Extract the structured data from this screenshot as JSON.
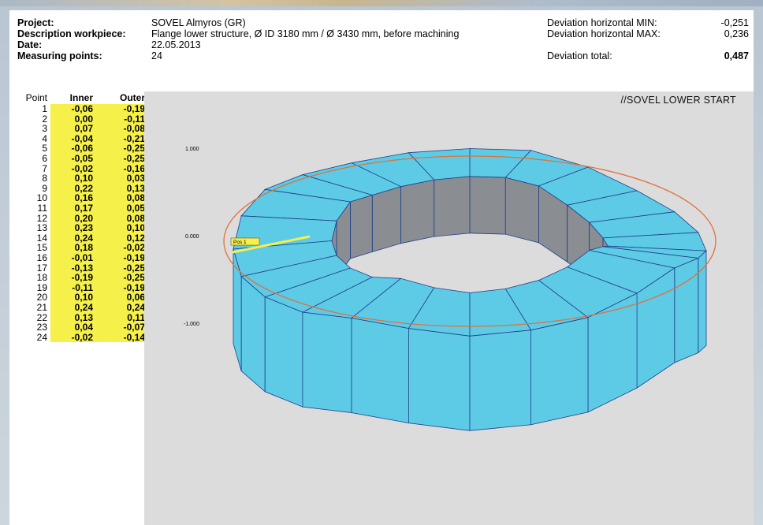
{
  "header": {
    "project_label": "Project:",
    "project_value": "SOVEL Almyros (GR)",
    "description_label": "Description workpiece:",
    "description_value": "Flange lower structure, Ø ID 3180 mm / Ø 3430 mm, before machining",
    "date_label": "Date:",
    "date_value": "22.05.2013",
    "points_label": "Measuring points:",
    "points_value": "24"
  },
  "deviation": {
    "min_label": "Deviation horizontal MIN:",
    "min_value": "-0,251",
    "max_label": "Deviation horizontal MAX:",
    "max_value": "0,236",
    "total_label": "Deviation total:",
    "total_value": "0,487"
  },
  "table": {
    "col_point": "Point",
    "col_inner": "Inner",
    "col_outer": "Outer",
    "rows": [
      {
        "point": "1",
        "inner": "-0,06",
        "outer": "-0,19"
      },
      {
        "point": "2",
        "inner": "0,00",
        "outer": "-0,11"
      },
      {
        "point": "3",
        "inner": "0,07",
        "outer": "-0,08"
      },
      {
        "point": "4",
        "inner": "-0,04",
        "outer": "-0,21"
      },
      {
        "point": "5",
        "inner": "-0,06",
        "outer": "-0,25"
      },
      {
        "point": "6",
        "inner": "-0,05",
        "outer": "-0,25"
      },
      {
        "point": "7",
        "inner": "-0,02",
        "outer": "-0,16"
      },
      {
        "point": "8",
        "inner": "0,10",
        "outer": "0,03"
      },
      {
        "point": "9",
        "inner": "0,22",
        "outer": "0,13"
      },
      {
        "point": "10",
        "inner": "0,16",
        "outer": "0,08"
      },
      {
        "point": "11",
        "inner": "0,17",
        "outer": "0,05"
      },
      {
        "point": "12",
        "inner": "0,20",
        "outer": "0,08"
      },
      {
        "point": "13",
        "inner": "0,23",
        "outer": "0,10"
      },
      {
        "point": "14",
        "inner": "0,24",
        "outer": "0,12"
      },
      {
        "point": "15",
        "inner": "0,18",
        "outer": "-0,02"
      },
      {
        "point": "16",
        "inner": "-0,01",
        "outer": "-0,19"
      },
      {
        "point": "17",
        "inner": "-0,13",
        "outer": "-0,25"
      },
      {
        "point": "18",
        "inner": "-0,19",
        "outer": "-0,25"
      },
      {
        "point": "19",
        "inner": "-0,11",
        "outer": "-0,19"
      },
      {
        "point": "20",
        "inner": "0,10",
        "outer": "0,06"
      },
      {
        "point": "21",
        "inner": "0,24",
        "outer": "0,24"
      },
      {
        "point": "22",
        "inner": "0,13",
        "outer": "0,11"
      },
      {
        "point": "23",
        "inner": "0,04",
        "outer": "-0,07"
      },
      {
        "point": "24",
        "inner": "-0,02",
        "outer": "-0,14"
      }
    ]
  },
  "viewport": {
    "title": "//SOVEL LOWER START",
    "y_labels": [
      "1.000",
      "0.000",
      "-1.000"
    ],
    "marker_label": "Pos 1",
    "colors": {
      "face": "#5ecbe6",
      "inner_wall": "#8a8e93",
      "edge": "#1f3e8a",
      "reference_ring": "#e0703a",
      "marker": "#f5f04a",
      "background": "#dcdcdc"
    }
  }
}
